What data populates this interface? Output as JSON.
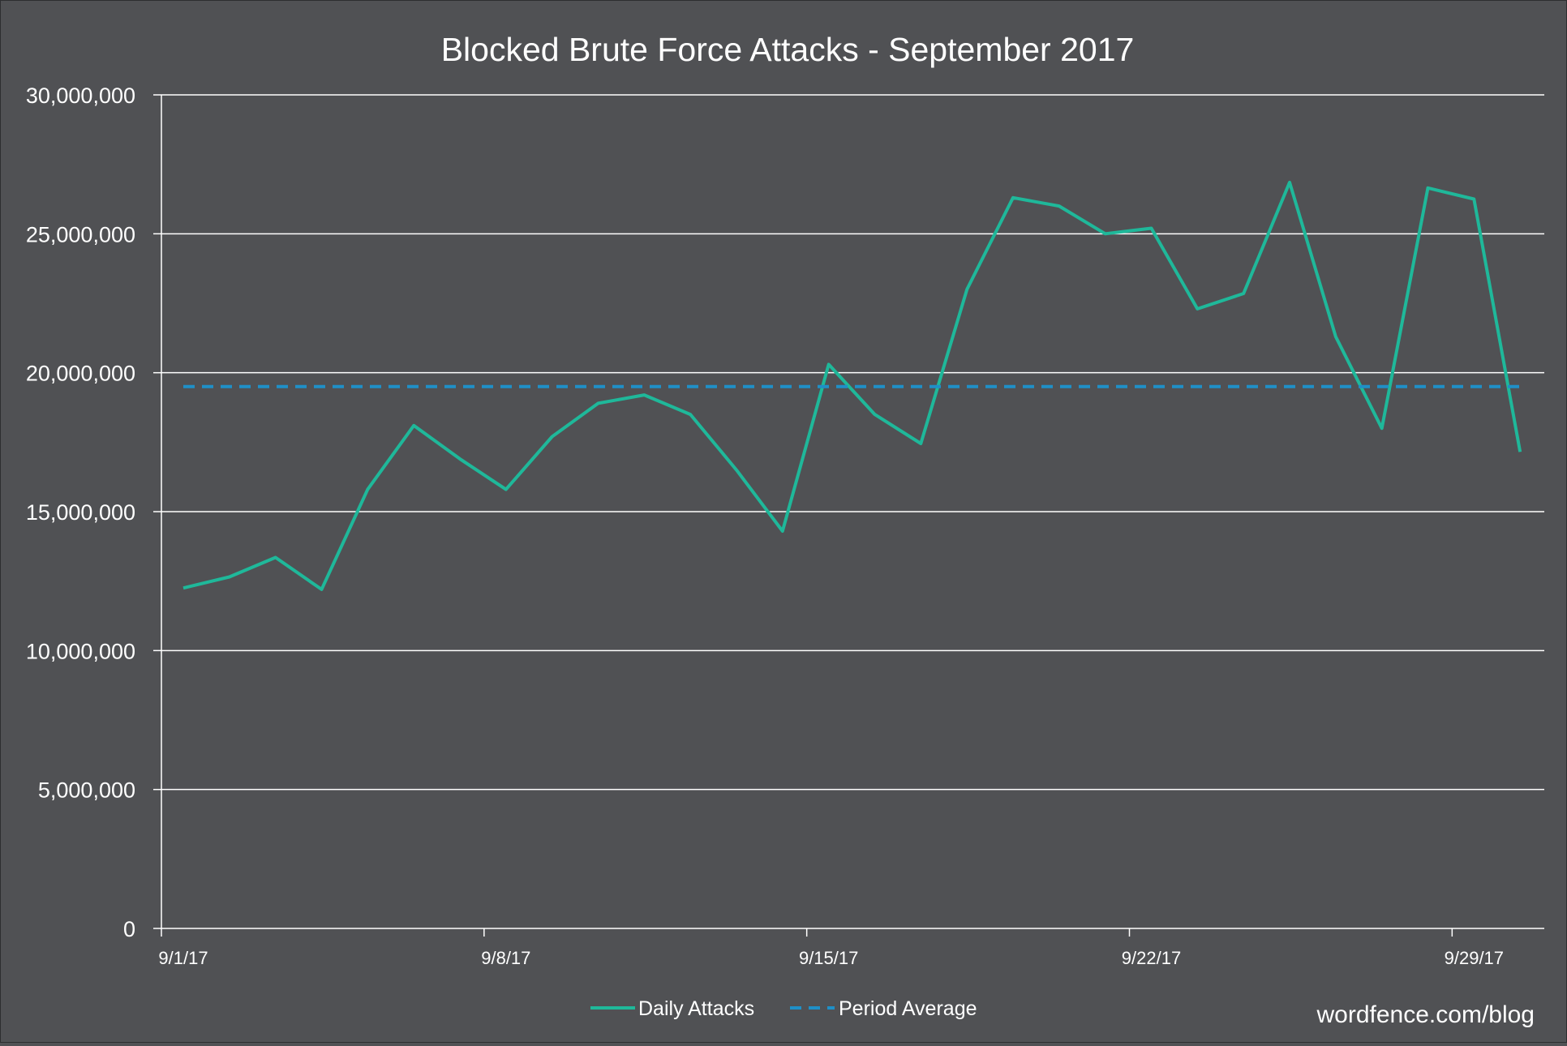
{
  "chart_data": {
    "type": "line",
    "title": "Blocked Brute Force Attacks - September 2017",
    "xlabel": "",
    "ylabel": "",
    "ylim": [
      0,
      30000000
    ],
    "yticks": [
      {
        "value": 0,
        "label": "0"
      },
      {
        "value": 5000000,
        "label": "5,000,000"
      },
      {
        "value": 10000000,
        "label": "10,000,000"
      },
      {
        "value": 15000000,
        "label": "15,000,000"
      },
      {
        "value": 20000000,
        "label": "20,000,000"
      },
      {
        "value": 25000000,
        "label": "25,000,000"
      },
      {
        "value": 30000000,
        "label": "30,000,000"
      }
    ],
    "xticks": [
      {
        "day": 1,
        "label": "9/1/17"
      },
      {
        "day": 8,
        "label": "9/8/17"
      },
      {
        "day": 15,
        "label": "9/15/17"
      },
      {
        "day": 22,
        "label": "9/22/17"
      },
      {
        "day": 29,
        "label": "9/29/17"
      }
    ],
    "grid": true,
    "legend_position": "bottom",
    "series": [
      {
        "name": "Daily Attacks",
        "style": "solid",
        "color": "#1fb89a",
        "x": [
          "9/1/17",
          "9/2/17",
          "9/3/17",
          "9/4/17",
          "9/5/17",
          "9/6/17",
          "9/7/17",
          "9/8/17",
          "9/9/17",
          "9/10/17",
          "9/11/17",
          "9/12/17",
          "9/13/17",
          "9/14/17",
          "9/15/17",
          "9/16/17",
          "9/17/17",
          "9/18/17",
          "9/19/17",
          "9/20/17",
          "9/21/17",
          "9/22/17",
          "9/23/17",
          "9/24/17",
          "9/25/17",
          "9/26/17",
          "9/27/17",
          "9/28/17",
          "9/29/17",
          "9/30/17"
        ],
        "days": [
          1,
          2,
          3,
          4,
          5,
          6,
          7,
          8,
          9,
          10,
          11,
          12,
          13,
          14,
          15,
          16,
          17,
          18,
          19,
          20,
          21,
          22,
          23,
          24,
          25,
          26,
          27,
          28,
          29,
          30
        ],
        "values": [
          12250000,
          12650000,
          13350000,
          12200000,
          15800000,
          18100000,
          16900000,
          15800000,
          17700000,
          18900000,
          19200000,
          18500000,
          16500000,
          14300000,
          20300000,
          18500000,
          17450000,
          23000000,
          26300000,
          26000000,
          25000000,
          25200000,
          22300000,
          22850000,
          26850000,
          21300000,
          18000000,
          26650000,
          26250000,
          17150000
        ]
      },
      {
        "name": "Period Average",
        "style": "dashed",
        "color": "#1f8fc7",
        "days": [
          1,
          30
        ],
        "values": [
          19500000,
          19500000
        ]
      }
    ]
  },
  "watermark": "wordfence.com/blog",
  "colors": {
    "background": "#505154",
    "grid": "#ffffff",
    "text": "#ffffff"
  }
}
